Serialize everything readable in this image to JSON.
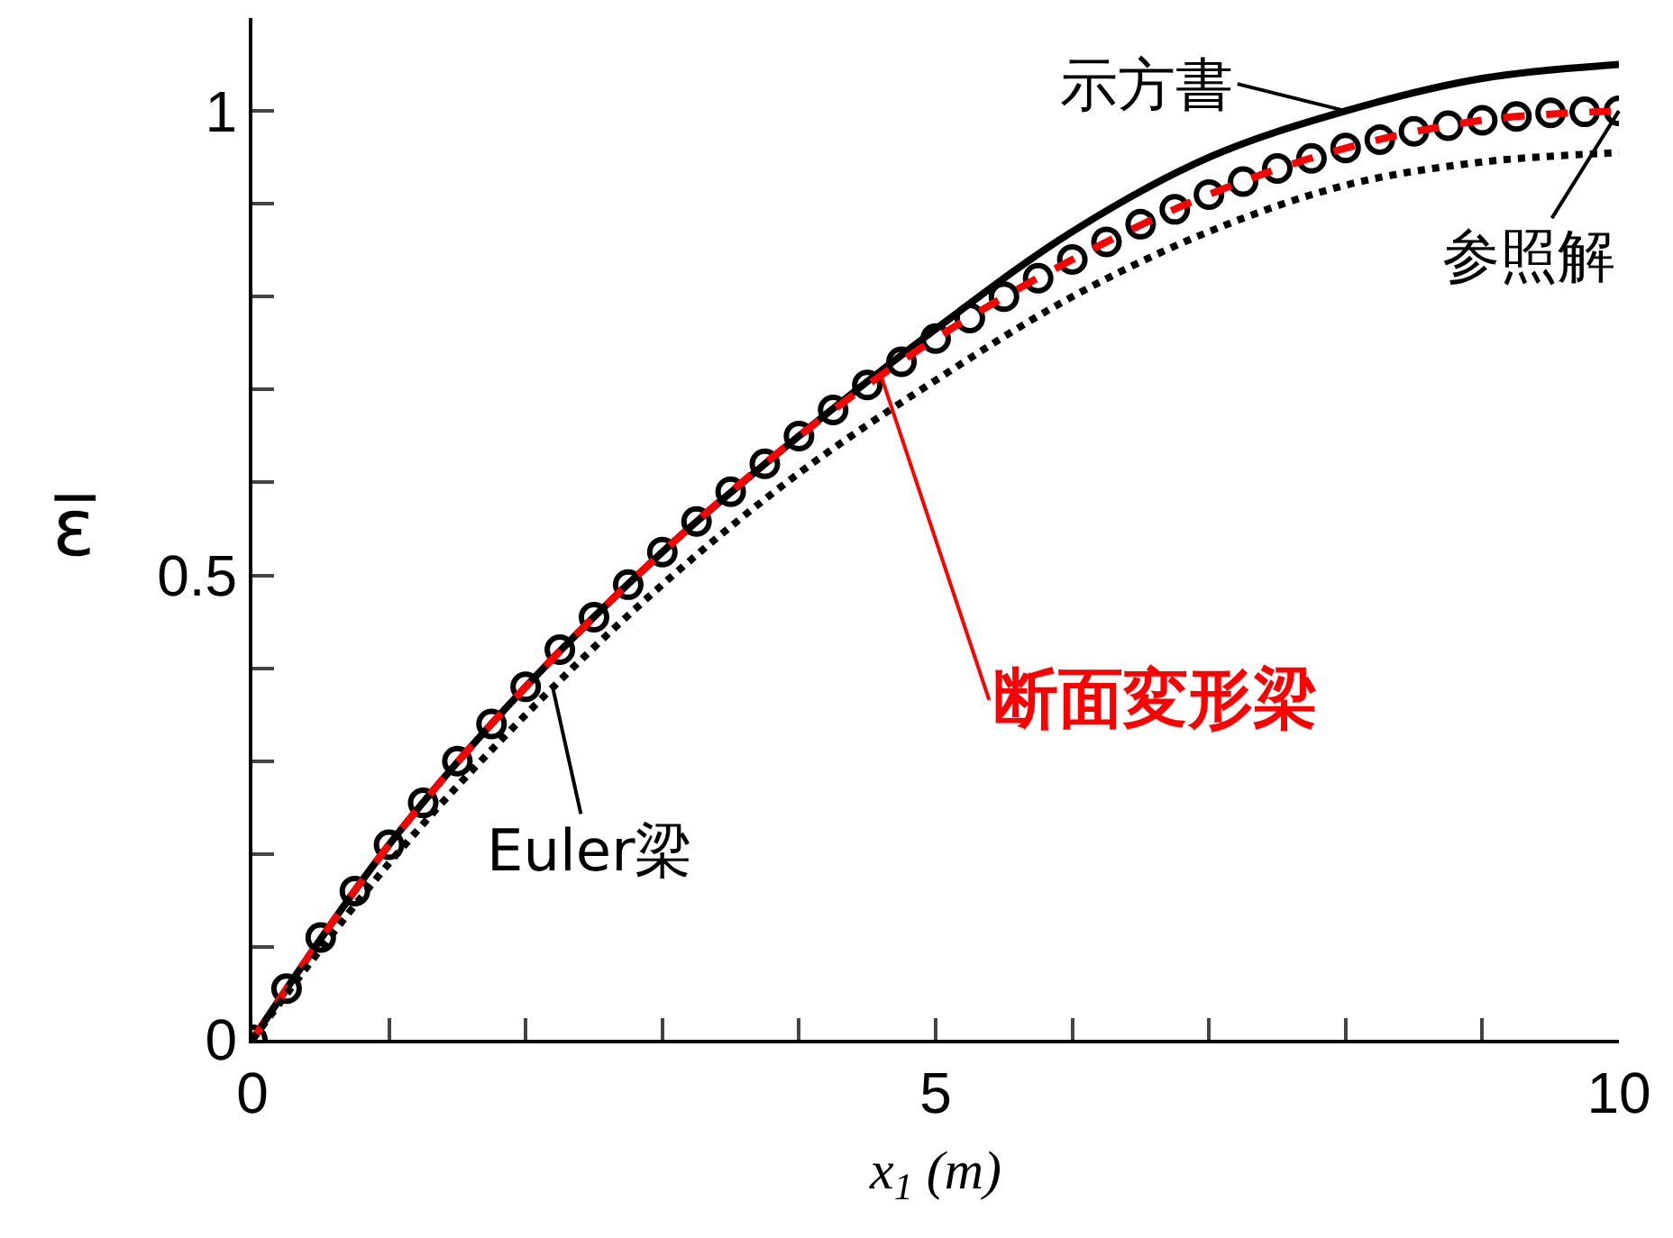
{
  "chart_data": {
    "type": "line",
    "xlabel": "x$_{1}$ (m)",
    "ylabel": "ε̅",
    "x": [
      0,
      1,
      2,
      3,
      4,
      5,
      6,
      7,
      8,
      9,
      10
    ],
    "series": [
      {
        "color": "#000000",
        "line_style": "solid",
        "values": [
          0,
          0.21,
          0.38,
          0.525,
          0.65,
          0.765,
          0.87,
          0.95,
          1.0,
          1.035,
          1.05
        ]
      },
      {
        "type": "scatter",
        "marker": "circle",
        "color": "#000000",
        "x": [
          0,
          0.25,
          0.5,
          0.75,
          1,
          1.25,
          1.5,
          1.75,
          2,
          2.25,
          2.5,
          2.75,
          3,
          3.25,
          3.5,
          3.75,
          4,
          4.25,
          4.5,
          4.75,
          5,
          5.25,
          5.5,
          5.75,
          6,
          6.25,
          6.5,
          6.75,
          7,
          7.25,
          7.5,
          7.75,
          8,
          8.25,
          8.5,
          8.75,
          9,
          9.25,
          9.5,
          9.75,
          10
        ],
        "values": [
          0,
          0.055,
          0.11,
          0.16,
          0.21,
          0.255,
          0.3,
          0.34,
          0.38,
          0.42,
          0.455,
          0.49,
          0.525,
          0.558,
          0.59,
          0.62,
          0.65,
          0.678,
          0.705,
          0.73,
          0.755,
          0.777,
          0.8,
          0.82,
          0.84,
          0.859,
          0.878,
          0.894,
          0.91,
          0.924,
          0.938,
          0.949,
          0.96,
          0.969,
          0.978,
          0.984,
          0.99,
          0.994,
          0.998,
          0.999,
          1.0
        ]
      },
      {
        "color": "#ff0000",
        "line_style": "dashed",
        "values": [
          0,
          0.21,
          0.38,
          0.525,
          0.65,
          0.755,
          0.84,
          0.91,
          0.96,
          0.99,
          1.0
        ]
      },
      {
        "color": "#000000",
        "line_style": "dotted",
        "values": [
          0,
          0.19,
          0.35,
          0.49,
          0.61,
          0.71,
          0.8,
          0.87,
          0.92,
          0.945,
          0.955
        ]
      }
    ],
    "annotations": [
      {
        "text": "示方書",
        "x": 8,
        "y": 1.0
      },
      {
        "text": "参照解",
        "x": 10,
        "y": 1.0
      },
      {
        "text": "断面変形梁",
        "x": 4.6,
        "y": 0.715
      },
      {
        "text": "Euler梁",
        "x": 2.2,
        "y": 0.378
      }
    ],
    "xlim": [
      0,
      10
    ],
    "ylim": [
      0,
      1.1
    ],
    "xticks": [
      0,
      {
        "value": 1,
        "label": null
      },
      {
        "value": 2,
        "label": null
      },
      {
        "value": 3,
        "label": null
      },
      {
        "value": 4,
        "label": null
      },
      5,
      {
        "value": 6,
        "label": null
      },
      {
        "value": 7,
        "label": null
      },
      {
        "value": 8,
        "label": null
      },
      {
        "value": 9,
        "label": null
      },
      10
    ],
    "yticks": [
      0,
      {
        "value": 0.1,
        "label": null
      },
      {
        "value": 0.2,
        "label": null
      },
      {
        "value": 0.3,
        "label": null
      },
      {
        "value": 0.4,
        "label": null
      },
      0.5,
      {
        "value": 0.6,
        "label": null
      },
      {
        "value": 0.7,
        "label": null
      },
      {
        "value": 0.8,
        "label": null
      },
      {
        "value": 0.9,
        "label": null
      },
      1
    ]
  }
}
